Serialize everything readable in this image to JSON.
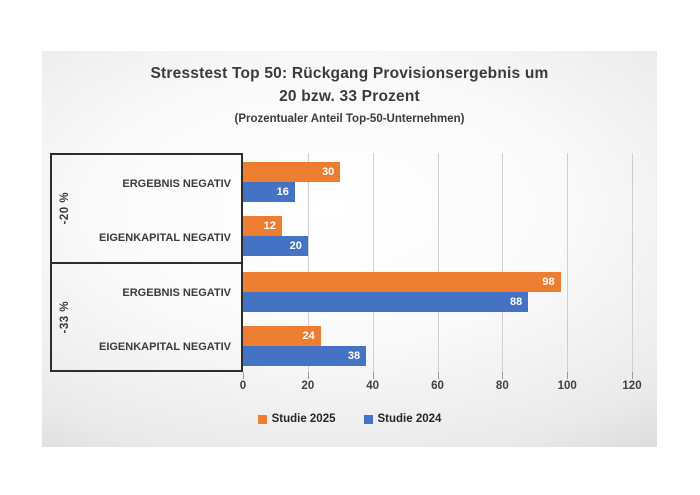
{
  "title": {
    "line1": "Stresstest Top 50: Rückgang Provisionsergebnis um",
    "line2": "20 bzw. 33 Prozent",
    "subtitle": "(Prozentualer Anteil Top-50-Unternehmen)"
  },
  "chart_data": {
    "type": "bar",
    "orientation": "horizontal",
    "title": "Stresstest Top 50: Rückgang Provisionsergebnis um 20 bzw. 33 Prozent",
    "subtitle": "(Prozentualer Anteil Top-50-Unternehmen)",
    "xlim": [
      0,
      120
    ],
    "xticks": [
      0,
      20,
      40,
      60,
      80,
      100,
      120
    ],
    "grid": true,
    "legend_position": "bottom",
    "series": [
      {
        "name": "Studie 2025",
        "color": "#ED7D31"
      },
      {
        "name": "Studie 2024",
        "color": "#4472C4"
      }
    ],
    "groups": [
      {
        "label": "-20 %",
        "categories": [
          {
            "label": "ERGEBNIS NEGATIV",
            "values": [
              30,
              16
            ]
          },
          {
            "label": "EIGENKAPITAL NEGATIV",
            "values": [
              12,
              20
            ]
          }
        ]
      },
      {
        "label": "-33 %",
        "categories": [
          {
            "label": "ERGEBNIS NEGATIV",
            "values": [
              98,
              88
            ]
          },
          {
            "label": "EIGENKAPITAL NEGATIV",
            "values": [
              24,
              38
            ]
          }
        ]
      }
    ]
  },
  "colors": {
    "bar_value_label": "#ffffff",
    "gridline": "#cfcfcf",
    "axis_text": "#404040",
    "box_border": "#2d2d2d"
  }
}
